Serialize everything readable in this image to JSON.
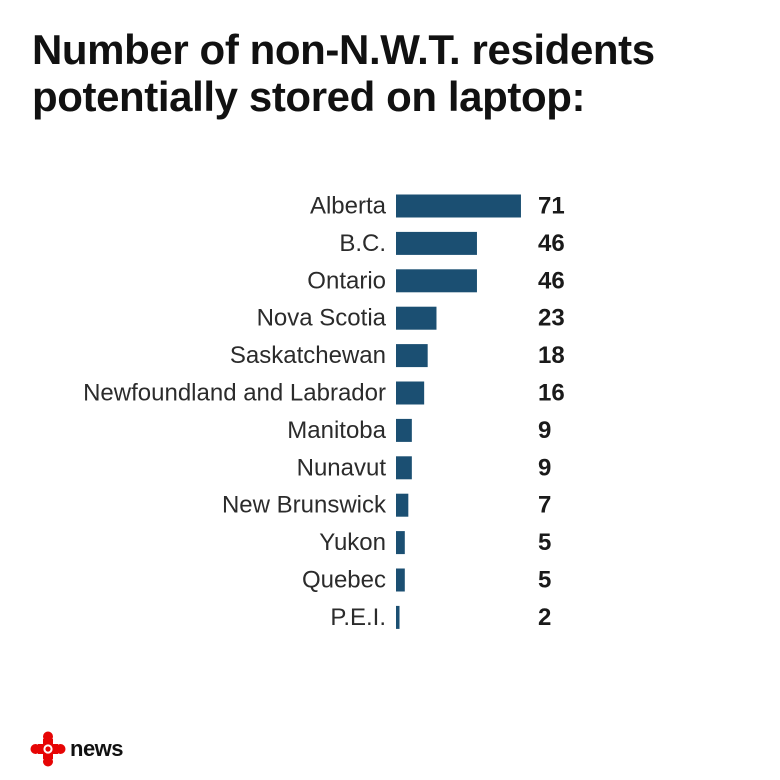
{
  "chart_data": {
    "type": "bar",
    "orientation": "horizontal",
    "title": "Number of non-N.W.T. residents potentially stored on laptop:",
    "categories": [
      "Alberta",
      "B.C.",
      "Ontario",
      "Nova Scotia",
      "Saskatchewan",
      "Newfoundland and Labrador",
      "Manitoba",
      "Nunavut",
      "New Brunswick",
      "Yukon",
      "Quebec",
      "P.E.I."
    ],
    "values": [
      71,
      46,
      46,
      23,
      18,
      16,
      9,
      9,
      7,
      5,
      5,
      2
    ],
    "bar_color": "#1b4f72",
    "grid": false,
    "legend": "none"
  },
  "branding": {
    "logo_icon": "cbc-gem-icon",
    "logo_color": "#e60505",
    "logo_text": "news"
  }
}
